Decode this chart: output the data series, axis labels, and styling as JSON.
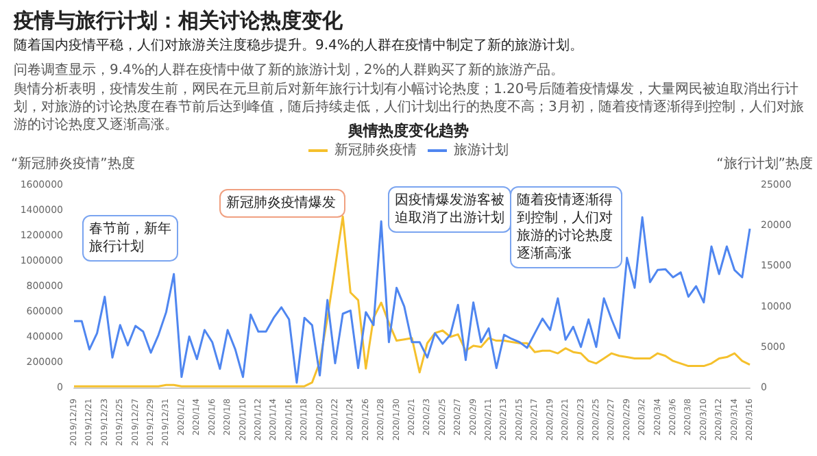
{
  "chart_data": {
    "type": "line",
    "title": "舆情热度变化趋势",
    "annotations": [
      "疫情与旅行计划：相关讨论热度变化",
      "随着国内疫情平稳，人们对旅游关注度稳步提升。9.4%的人群在疫情中制定了新的旅游计划。",
      "问卷调查显示，9.4%的人群在疫情中做了新的旅游计划，2%的人群购买了新的旅游产品。",
      "舆情分析表明，疫情发生前，网民在元旦前后对新年旅行计划有小幅讨论热度；1.20号后随着疫情爆发，大量网民被迫取消出行计划，对旅游的讨论热度在春节前后达到峰值，随后持续走低，人们计划出行的热度不高；3月初，随着疫情逐渐得到控制，人们对旅游的讨论热度又逐渐高涨。",
      "春节前，新年旅行计划",
      "新冠肺炎疫情爆发",
      "因疫情爆发游客被迫取消了出游计划",
      "随着疫情逐渐得到控制，人们对旅游的讨论热度逐渐高涨"
    ],
    "ylabel": "“新冠肺炎疫情”热度",
    "y2label": "“旅行计划”热度",
    "legend": "top",
    "categories": [
      "2019/12/19",
      null,
      "2019/12/21",
      null,
      "2019/12/23",
      null,
      "2019/12/25",
      null,
      "2019/12/27",
      null,
      "2019/12/29",
      null,
      "2019/12/31",
      null,
      "2020/1/2",
      null,
      "2020/1/4",
      null,
      "2020/1/6",
      null,
      "2020/1/8",
      null,
      "2020/1/10",
      null,
      "2020/1/12",
      null,
      "2020/1/14",
      null,
      "2020/1/16",
      null,
      "2020/1/18",
      null,
      "2020/1/20",
      null,
      "2020/1/22",
      null,
      "2020/1/24",
      null,
      "2020/1/26",
      null,
      "2020/1/28",
      null,
      "2020/1/30",
      null,
      "2020/2/1",
      null,
      "2020/2/3",
      null,
      "2020/2/5",
      null,
      "2020/2/7",
      null,
      "2020/2/9",
      null,
      "2020/2/11",
      null,
      "2020/2/13",
      null,
      "2020/2/15",
      null,
      "2020/2/17",
      null,
      "2020/2/19",
      null,
      "2020/2/21",
      null,
      "2020/2/23",
      null,
      "2020/2/25",
      null,
      "2020/2/27",
      null,
      "2020/2/29",
      null,
      "2020/3/2",
      null,
      "2020/3/4",
      null,
      "2020/3/6",
      null,
      "2020/3/8",
      null,
      "2020/3/10",
      null,
      "2020/3/12",
      null,
      "2020/3/14",
      null,
      "2020/3/16"
    ],
    "ylim": [
      0,
      1600000
    ],
    "yticks": [
      0,
      200000,
      400000,
      600000,
      800000,
      1000000,
      1200000,
      1400000,
      1600000
    ],
    "y2lim": [
      0,
      25000
    ],
    "y2ticks": [
      0,
      5000,
      10000,
      15000,
      20000,
      25000
    ],
    "series": [
      {
        "name": "新冠肺炎疫情",
        "color": "#f5c02c",
        "values": [
          10000,
          10000,
          10000,
          10000,
          10000,
          10000,
          10000,
          10000,
          10000,
          10000,
          10000,
          10000,
          20000,
          20000,
          10000,
          10000,
          10000,
          10000,
          10000,
          10000,
          10000,
          10000,
          10000,
          10000,
          10000,
          10000,
          10000,
          10000,
          10000,
          10000,
          10000,
          40000,
          200000,
          550000,
          950000,
          1350000,
          750000,
          690000,
          150000,
          550000,
          670000,
          510000,
          370000,
          380000,
          390000,
          120000,
          350000,
          430000,
          450000,
          400000,
          420000,
          290000,
          330000,
          320000,
          390000,
          370000,
          370000,
          360000,
          350000,
          350000,
          280000,
          290000,
          290000,
          270000,
          310000,
          280000,
          270000,
          210000,
          190000,
          230000,
          270000,
          250000,
          240000,
          230000,
          230000,
          230000,
          270000,
          250000,
          210000,
          190000,
          170000,
          170000,
          170000,
          190000,
          230000,
          240000,
          270000,
          210000,
          180000
        ]
      },
      {
        "name": "旅游计划",
        "color": "#4f86f0",
        "axis": "y2",
        "values": [
          8200,
          8200,
          4700,
          6700,
          11200,
          3700,
          7700,
          5200,
          7600,
          6900,
          4300,
          6500,
          9300,
          14000,
          1300,
          6300,
          3500,
          7100,
          5600,
          2300,
          7100,
          4700,
          1300,
          9000,
          6900,
          6900,
          8600,
          9900,
          8400,
          600,
          8600,
          7700,
          1500,
          10800,
          3000,
          9100,
          9500,
          2400,
          9300,
          7700,
          20500,
          5600,
          12300,
          10000,
          5600,
          5600,
          3700,
          6700,
          5400,
          6500,
          10200,
          3400,
          10500,
          5600,
          7300,
          2400,
          6500,
          6000,
          5600,
          4900,
          6700,
          8500,
          7100,
          11000,
          5900,
          7500,
          5000,
          8400,
          5000,
          11000,
          8400,
          6100,
          16000,
          12300,
          21000,
          13000,
          14500,
          14600,
          13600,
          14200,
          11200,
          12500,
          10500,
          17400,
          14000,
          17400,
          14500,
          13600,
          19600
        ]
      }
    ]
  }
}
